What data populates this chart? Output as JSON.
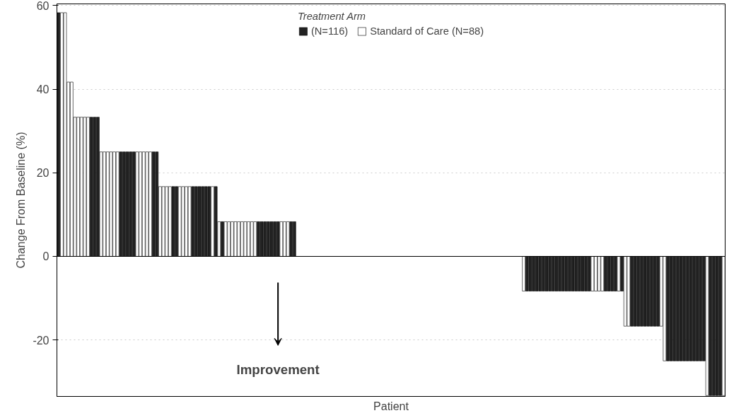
{
  "chart_data": {
    "type": "bar",
    "ylabel": "Change From Baseline (%)",
    "xlabel": "Patient",
    "legend_title": "Treatment Arm",
    "categories": [
      null,
      null,
      null,
      null,
      null,
      null,
      null,
      null,
      null,
      null,
      null,
      null,
      null,
      null,
      null,
      null,
      null,
      null,
      null,
      null,
      null,
      null,
      null,
      null,
      null,
      null,
      null,
      null,
      null,
      null,
      null,
      null,
      null,
      null,
      null,
      null,
      null,
      null,
      null,
      null,
      null,
      null,
      null,
      null,
      null,
      null,
      null,
      null,
      null,
      null,
      null,
      null,
      null,
      null,
      null,
      null,
      null,
      null,
      null,
      null,
      null,
      null,
      null,
      null,
      null,
      null,
      null,
      null,
      null,
      null,
      null,
      null,
      null,
      null,
      null,
      null,
      null,
      null,
      null,
      null,
      null,
      null,
      null,
      null,
      null,
      null,
      null,
      null,
      null,
      null,
      null,
      null,
      null,
      null,
      null,
      null,
      null,
      null,
      null,
      null,
      null,
      null,
      null,
      null,
      null,
      null,
      null,
      null,
      null,
      null,
      null,
      null,
      null,
      null,
      null,
      null,
      null,
      null,
      null,
      null,
      null,
      null,
      null,
      null,
      null,
      null,
      null,
      null,
      null,
      null,
      null,
      null,
      null,
      null,
      null,
      null,
      null,
      null,
      null,
      null,
      null,
      null,
      null,
      null,
      null,
      null,
      null,
      null,
      null,
      null,
      null,
      null,
      null,
      null,
      null,
      null,
      null,
      null,
      null,
      null,
      null,
      null,
      null,
      null,
      null,
      null,
      null,
      null,
      null,
      null,
      null,
      null,
      null,
      null,
      null,
      null,
      null,
      null,
      null,
      null,
      null,
      null,
      null,
      null,
      null,
      null,
      null,
      null,
      null,
      null,
      null,
      null,
      null,
      null,
      null,
      null,
      null,
      null,
      null,
      null,
      null,
      null,
      null,
      null
    ],
    "series": [
      {
        "name": "(N=116)",
        "color": "#222222",
        "values": [
          58.3,
          null,
          null,
          null,
          null,
          null,
          null,
          null,
          null,
          null,
          33.3,
          33.3,
          33.3,
          null,
          null,
          null,
          null,
          null,
          null,
          25,
          25,
          25,
          25,
          25,
          null,
          null,
          null,
          null,
          null,
          25,
          25,
          null,
          null,
          null,
          null,
          16.7,
          16.7,
          null,
          null,
          null,
          null,
          16.7,
          16.7,
          16.7,
          16.7,
          16.7,
          16.7,
          null,
          16.7,
          null,
          8.3,
          null,
          null,
          null,
          null,
          null,
          null,
          null,
          null,
          null,
          null,
          8.3,
          8.3,
          8.3,
          8.3,
          8.3,
          8.3,
          8.3,
          null,
          null,
          null,
          8.3,
          8.3,
          null,
          null,
          null,
          null,
          null,
          null,
          null,
          null,
          null,
          null,
          null,
          null,
          null,
          null,
          null,
          null,
          null,
          null,
          null,
          null,
          null,
          null,
          null,
          null,
          null,
          null,
          null,
          null,
          null,
          null,
          null,
          null,
          null,
          null,
          null,
          null,
          null,
          null,
          null,
          null,
          null,
          null,
          null,
          null,
          null,
          null,
          null,
          null,
          null,
          null,
          null,
          null,
          null,
          null,
          null,
          null,
          null,
          null,
          null,
          null,
          null,
          null,
          null,
          null,
          null,
          null,
          null,
          null,
          null,
          null,
          -8.3,
          -8.3,
          -8.3,
          -8.3,
          -8.3,
          -8.3,
          -8.3,
          -8.3,
          -8.3,
          -8.3,
          -8.3,
          -8.3,
          -8.3,
          -8.3,
          -8.3,
          -8.3,
          -8.3,
          -8.3,
          -8.3,
          -8.3,
          null,
          null,
          null,
          null,
          -8.3,
          -8.3,
          -8.3,
          -8.3,
          null,
          -8.3,
          null,
          null,
          -16.7,
          -16.7,
          -16.7,
          -16.7,
          -16.7,
          -16.7,
          -16.7,
          -16.7,
          -16.7,
          null,
          null,
          -25,
          -25,
          -25,
          -25,
          -25,
          -25,
          -25,
          -25,
          -25,
          -25,
          -25,
          -25,
          null,
          -33.3,
          -33.3,
          -33.3,
          -33.3,
          null
        ]
      },
      {
        "name": "Standard of Care (N=88)",
        "color": "#ffffff",
        "values": [
          null,
          58.3,
          58.3,
          41.7,
          41.7,
          33.3,
          33.3,
          33.3,
          33.3,
          33.3,
          null,
          null,
          null,
          25,
          25,
          25,
          25,
          25,
          25,
          null,
          null,
          null,
          null,
          null,
          25,
          25,
          25,
          25,
          25,
          null,
          null,
          16.7,
          16.7,
          16.7,
          16.7,
          null,
          null,
          16.7,
          16.7,
          16.7,
          16.7,
          null,
          null,
          null,
          null,
          null,
          null,
          16.7,
          null,
          8.3,
          null,
          8.3,
          8.3,
          8.3,
          8.3,
          8.3,
          8.3,
          8.3,
          8.3,
          8.3,
          8.3,
          null,
          null,
          null,
          null,
          null,
          null,
          null,
          8.3,
          8.3,
          8.3,
          null,
          null,
          null,
          null,
          null,
          null,
          null,
          null,
          null,
          null,
          null,
          null,
          null,
          null,
          null,
          null,
          null,
          null,
          null,
          null,
          null,
          null,
          null,
          null,
          null,
          null,
          null,
          null,
          null,
          null,
          null,
          null,
          null,
          null,
          null,
          null,
          null,
          null,
          null,
          null,
          null,
          null,
          null,
          null,
          null,
          null,
          null,
          null,
          null,
          null,
          null,
          null,
          null,
          null,
          null,
          null,
          null,
          null,
          null,
          null,
          null,
          null,
          null,
          null,
          null,
          null,
          null,
          null,
          null,
          null,
          null,
          -8.3,
          null,
          null,
          null,
          null,
          null,
          null,
          null,
          null,
          null,
          null,
          null,
          null,
          null,
          null,
          null,
          null,
          null,
          null,
          null,
          null,
          -8.3,
          -8.3,
          -8.3,
          -8.3,
          null,
          null,
          null,
          null,
          -8.3,
          null,
          -16.7,
          -16.7,
          null,
          null,
          null,
          null,
          null,
          null,
          null,
          null,
          null,
          -16.7,
          -25,
          null,
          null,
          null,
          null,
          null,
          null,
          null,
          null,
          null,
          null,
          null,
          null,
          -33.3,
          null,
          null,
          null,
          null,
          -33.3
        ]
      }
    ],
    "ylim": [
      -33.5,
      60.4
    ],
    "yticks": [
      -20,
      0,
      20,
      40,
      60
    ],
    "grid": "y",
    "legend": "top",
    "tick_labels": "y",
    "ref_lines": [
      {
        "axis": "y",
        "value": 0,
        "color": "#000000"
      }
    ],
    "annotations": [
      "Improvement"
    ]
  }
}
